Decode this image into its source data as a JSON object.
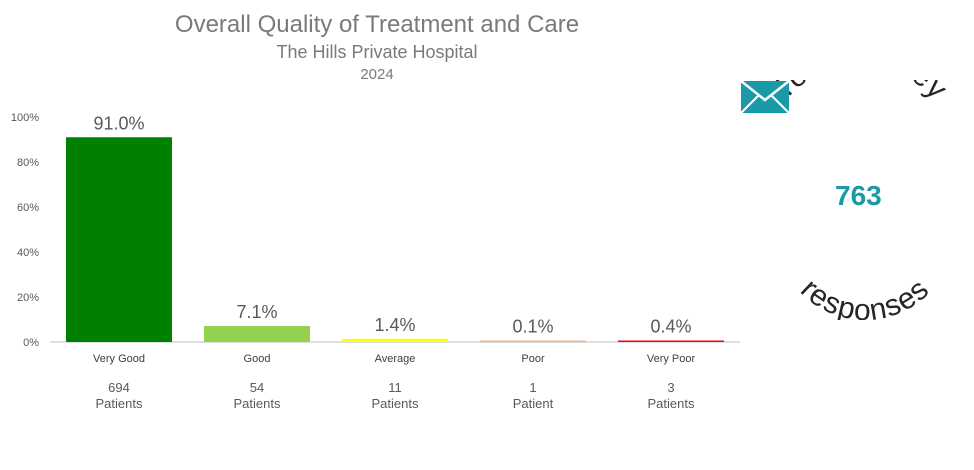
{
  "title": "Overall Quality of Treatment and Care",
  "subtitle": "The Hills Private Hospital",
  "year": "2024",
  "chart_data": {
    "type": "bar",
    "categories": [
      "Very Good",
      "Good",
      "Average",
      "Poor",
      "Very Poor"
    ],
    "values": [
      91.0,
      7.1,
      1.4,
      0.1,
      0.4
    ],
    "data_labels": [
      "91.0%",
      "7.1%",
      "1.4%",
      "0.1%",
      "0.4%"
    ],
    "colors": [
      "#008000",
      "#92d050",
      "#ffff00",
      "#f4b183",
      "#ff0000"
    ],
    "yticks": [
      "0%",
      "20%",
      "40%",
      "60%",
      "80%",
      "100%"
    ],
    "ylim": [
      0,
      100
    ],
    "grid": false
  },
  "counts": [
    {
      "number": "694",
      "unit": "Patients"
    },
    {
      "number": "54",
      "unit": "Patients"
    },
    {
      "number": "11",
      "unit": "Patients"
    },
    {
      "number": "1",
      "unit": "Patient"
    },
    {
      "number": "3",
      "unit": "Patients"
    }
  ],
  "survey": {
    "top_text": "Total survey",
    "bottom_text": "responses",
    "total": "763",
    "icon": "envelope-icon",
    "accent_color": "#1a9aa6"
  }
}
